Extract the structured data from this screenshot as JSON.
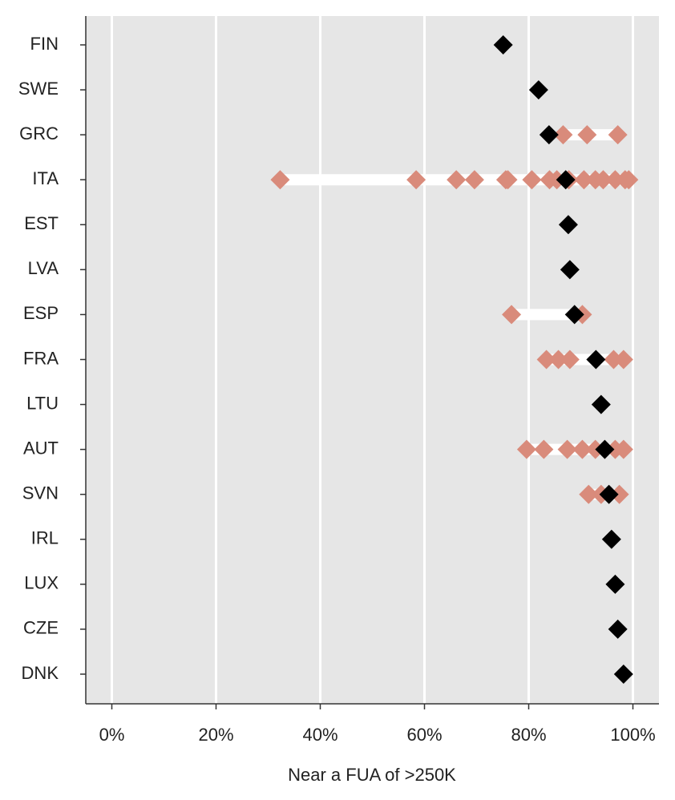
{
  "chart_data": {
    "type": "dot",
    "xlabel": "Near a FUA of >250K",
    "categories": [
      "FIN",
      "SWE",
      "GRC",
      "ITA",
      "EST",
      "LVA",
      "ESP",
      "FRA",
      "LTU",
      "AUT",
      "SVN",
      "IRL",
      "LUX",
      "CZE",
      "DNK"
    ],
    "values": [
      75.1,
      81.9,
      83.9,
      87.1,
      87.6,
      87.9,
      88.8,
      92.9,
      93.9,
      94.6,
      95.4,
      95.9,
      96.6,
      97.1,
      98.2
    ],
    "color": "#000000",
    "region_values": [
      [],
      [],
      [
        86.6,
        91.2,
        97.1
      ],
      [
        32.3,
        58.4,
        66.1,
        69.6,
        75.6,
        76.0,
        80.6,
        84.0,
        85.4,
        87.7,
        90.6,
        92.8,
        94.3,
        96.6,
        98.5,
        99.2
      ],
      [],
      [],
      [
        76.7,
        90.3
      ],
      [
        83.4,
        85.7,
        87.9,
        96.3,
        98.2
      ],
      [],
      [
        79.6,
        82.9,
        87.4,
        90.3,
        92.8,
        96.6,
        98.2
      ],
      [
        91.5,
        93.9,
        97.4
      ],
      [],
      [],
      [],
      []
    ],
    "region_color": "#d98b7b",
    "xlim": [
      -5,
      105
    ],
    "xticks": [
      {
        "value": 0,
        "label": "0%"
      },
      {
        "value": 20,
        "label": "20%"
      },
      {
        "value": 40,
        "label": "40%"
      },
      {
        "value": 60,
        "label": "60%"
      },
      {
        "value": 80,
        "label": "80%"
      },
      {
        "value": 100,
        "label": "100%"
      }
    ],
    "grid": true
  }
}
